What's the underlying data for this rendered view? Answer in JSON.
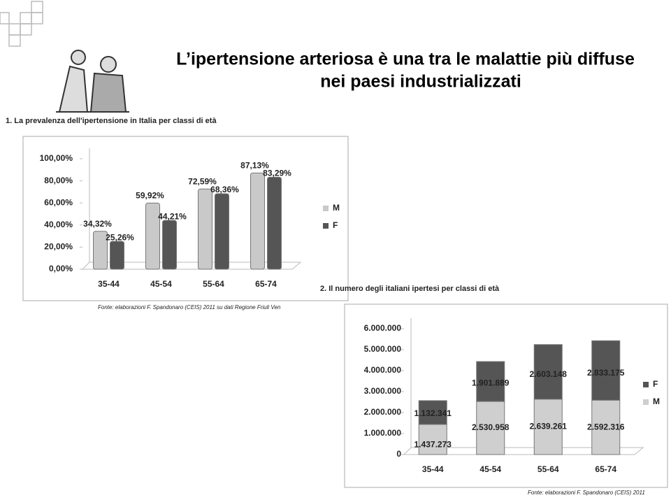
{
  "slide_title": [
    "L’ipertensione arteriosa è una tra le malattie più diffuse",
    "nei paesi industrializzati"
  ],
  "chart_data": [
    {
      "type": "bar",
      "title": "1. La prevalenza dell'ipertensione in Italia per classi di età",
      "categories": [
        "35-44",
        "45-54",
        "55-64",
        "65-74"
      ],
      "series": [
        {
          "name": "M",
          "color": "#c9c9c9",
          "values": [
            34.32,
            59.92,
            72.59,
            87.13
          ],
          "value_labels": [
            "34,32%",
            "59,92%",
            "72,59%",
            "87,13%"
          ]
        },
        {
          "name": "F",
          "color": "#555555",
          "values": [
            25.26,
            44.21,
            68.36,
            83.29
          ],
          "value_labels": [
            "25,26%",
            "44,21%",
            "68,36%",
            "83,29%"
          ]
        }
      ],
      "ylim": [
        0,
        100
      ],
      "yticks": [
        {
          "value": 0,
          "label": "0,00%"
        },
        {
          "value": 20,
          "label": "20,00%"
        },
        {
          "value": 40,
          "label": "40,00%"
        },
        {
          "value": 60,
          "label": "60,00%"
        },
        {
          "value": 80,
          "label": "80,00%"
        },
        {
          "value": 100,
          "label": "100,00%"
        }
      ],
      "grid": false,
      "legend": "right",
      "source": "Fonte: elaborazioni F. Spandonaro (CEIS) 2011 su dati Regione Friuli Ven"
    },
    {
      "type": "stacked_bar",
      "title": "2. Il numero degli italiani ipertesi per classi di età",
      "categories": [
        "35-44",
        "45-54",
        "55-64",
        "65-74"
      ],
      "series": [
        {
          "name": "M",
          "color": "#cfcfcf",
          "values": [
            1437273,
            2530958,
            2639261,
            2592316
          ],
          "value_labels": [
            "1.437.273",
            "2.530.958",
            "2.639.261",
            "2.592.316"
          ]
        },
        {
          "name": "F",
          "color": "#555555",
          "values": [
            1132341,
            1901889,
            2603148,
            2833175
          ],
          "value_labels": [
            "1.132.341",
            "1.901.889",
            "2.603.148",
            "2.833.175"
          ]
        }
      ],
      "ylim": [
        0,
        6000000
      ],
      "yticks": [
        0,
        {
          "value": 1000000,
          "label": "1.000.000"
        },
        {
          "value": 2000000,
          "label": "2.000.000"
        },
        {
          "value": 3000000,
          "label": "3.000.000"
        },
        {
          "value": 4000000,
          "label": "4.000.000"
        },
        {
          "value": 5000000,
          "label": "5.000.000"
        },
        {
          "value": 6000000,
          "label": "6.000.000"
        }
      ],
      "grid": false,
      "legend": "right",
      "source": "Fonte: elaborazioni F. Spandonaro (CEIS) 2011"
    }
  ]
}
